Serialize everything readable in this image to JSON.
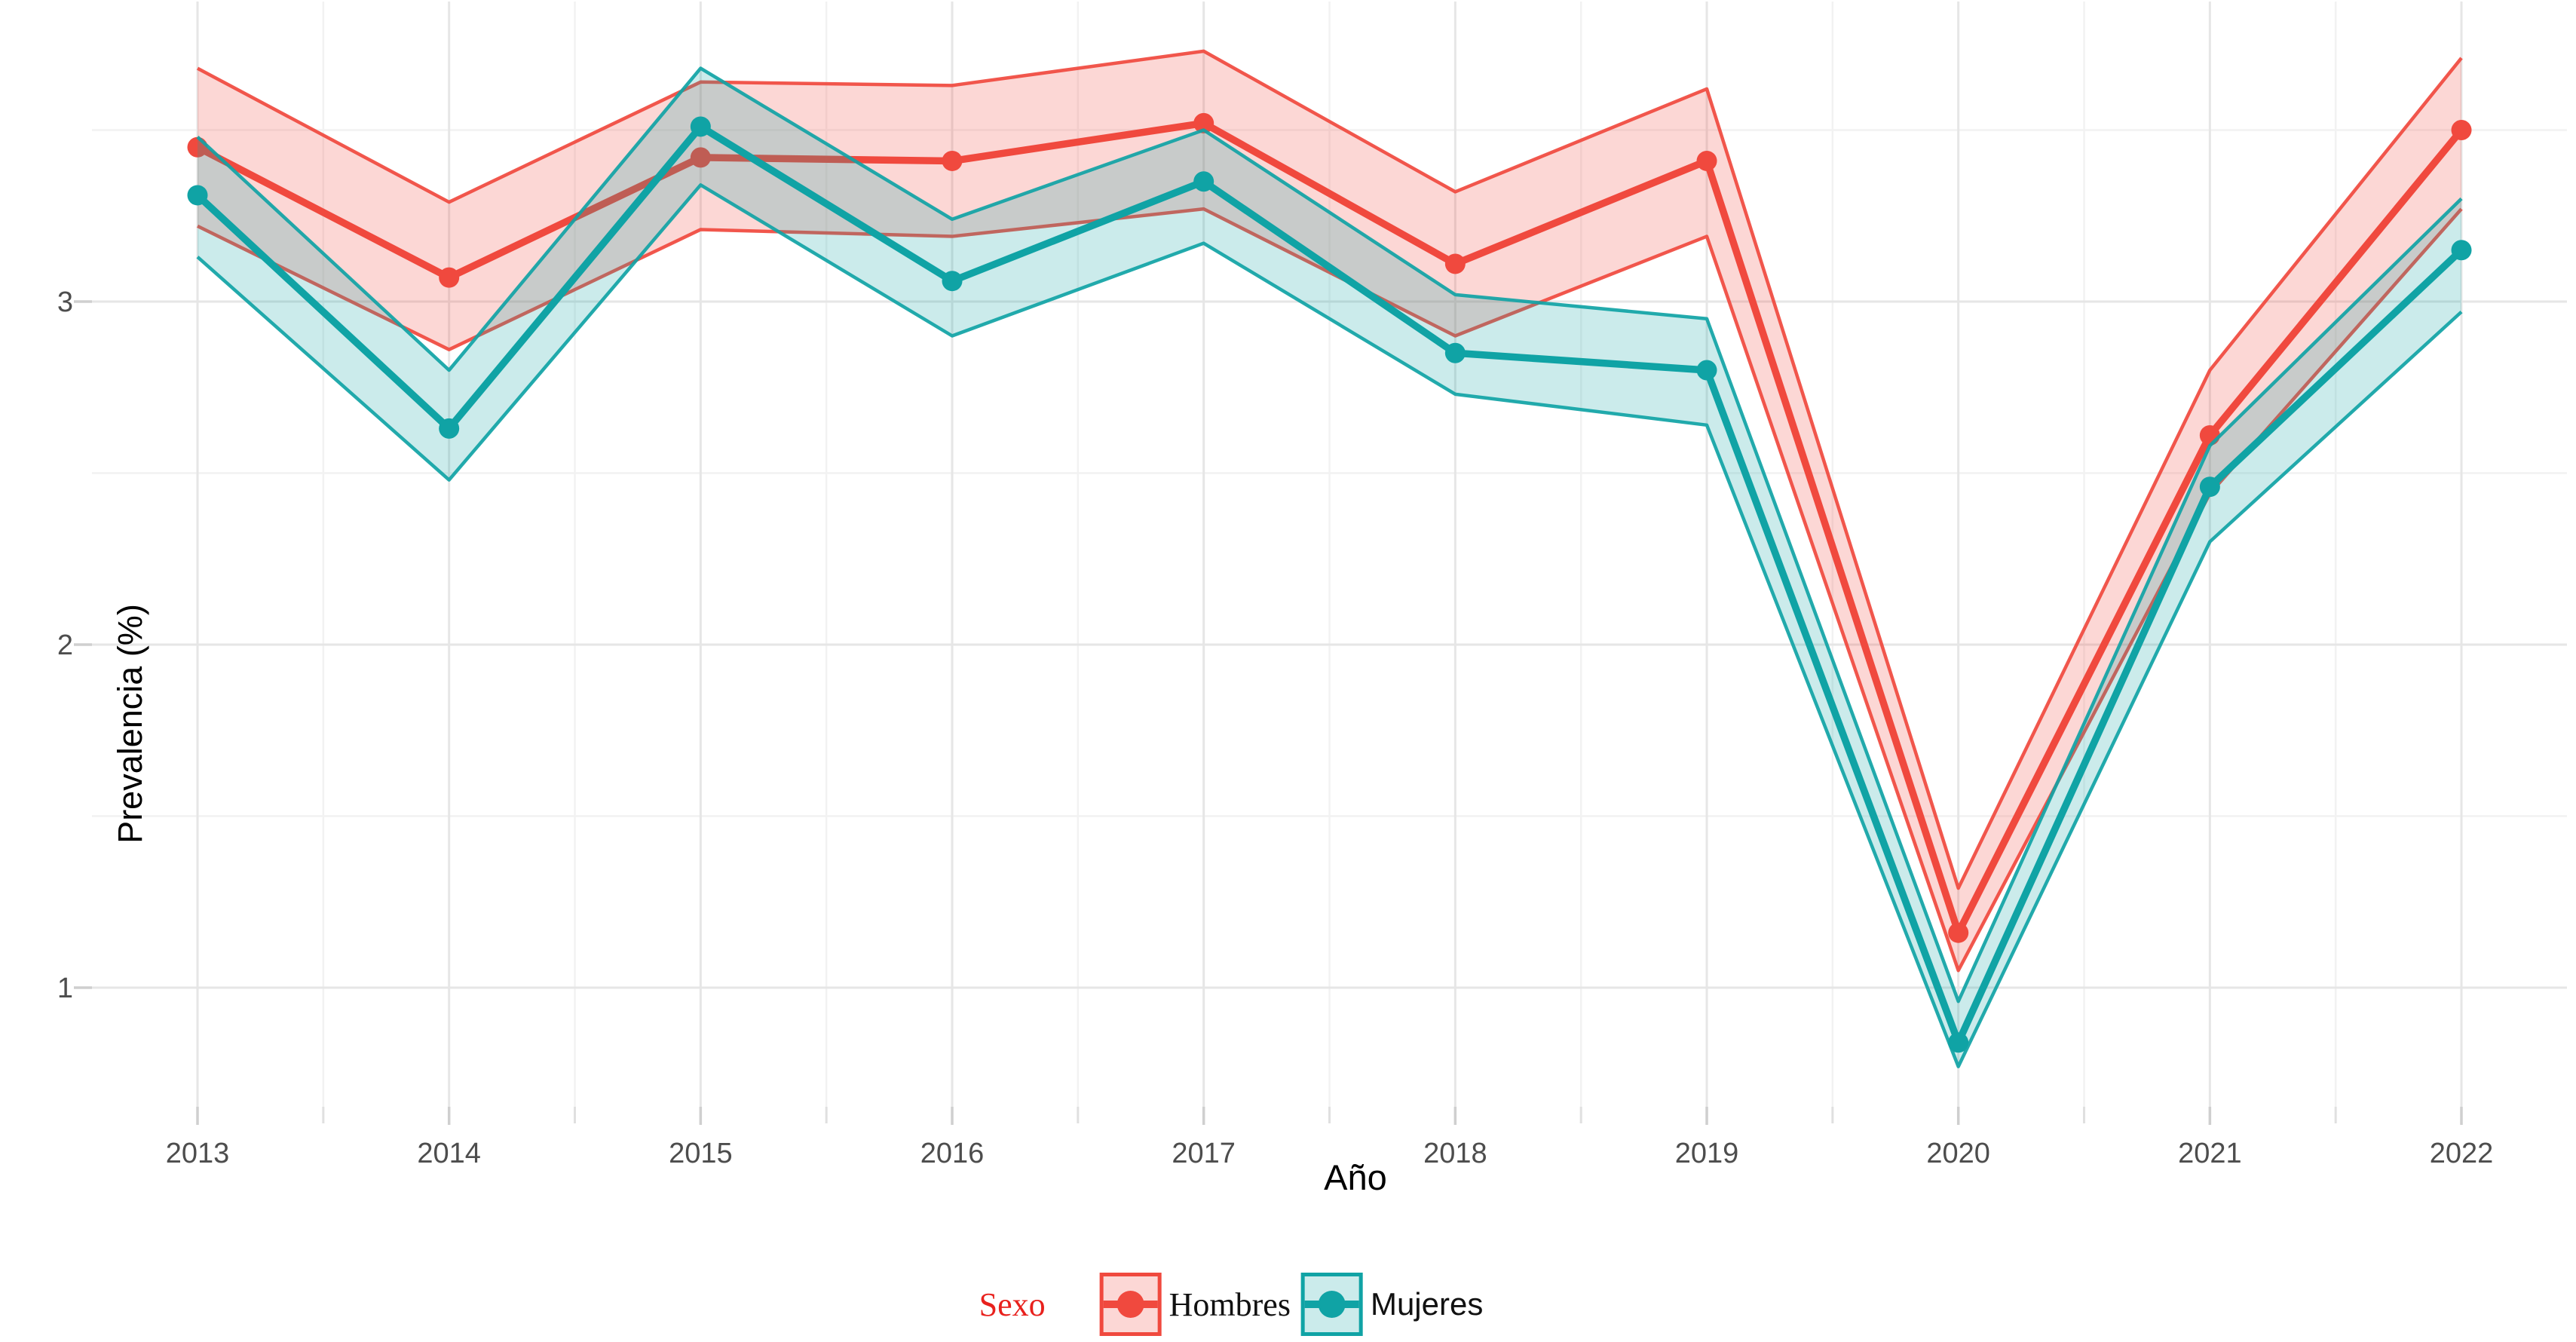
{
  "chart_data": {
    "type": "line",
    "title": "",
    "xlabel": "Año",
    "ylabel": "Prevalencia (%)",
    "x": [
      2013,
      2014,
      2015,
      2016,
      2017,
      2018,
      2019,
      2020,
      2021,
      2022
    ],
    "x_tick_labels": [
      "2013",
      "2014",
      "2015",
      "2016",
      "2017",
      "2018",
      "2019",
      "2020",
      "2021",
      "2022"
    ],
    "y_ticks": [
      1,
      2,
      3
    ],
    "y_tick_labels": [
      "1",
      "2",
      "3"
    ],
    "y_minor_ticks": [
      1.5,
      2.5,
      3.5
    ],
    "ylim": [
      0.65,
      3.88
    ],
    "grid": true,
    "legend_position": "bottom",
    "legend": {
      "title": "Sexo",
      "title_color": "#e8211d",
      "entries": [
        "Hombres",
        "Mujeres"
      ]
    },
    "series": [
      {
        "name": "Hombres",
        "color": "#f0493e",
        "fill_opacity": 0.22,
        "values": [
          3.45,
          3.07,
          3.42,
          3.41,
          3.52,
          3.11,
          3.41,
          1.16,
          2.61,
          3.5
        ],
        "lower": [
          3.22,
          2.86,
          3.21,
          3.19,
          3.27,
          2.9,
          3.19,
          1.05,
          2.44,
          3.27
        ],
        "upper": [
          3.68,
          3.29,
          3.64,
          3.63,
          3.73,
          3.32,
          3.62,
          1.29,
          2.8,
          3.71
        ]
      },
      {
        "name": "Mujeres",
        "color": "#10a3a5",
        "fill_opacity": 0.22,
        "values": [
          3.31,
          2.63,
          3.51,
          3.06,
          3.35,
          2.85,
          2.8,
          0.84,
          2.46,
          3.15
        ],
        "lower": [
          3.13,
          2.48,
          3.34,
          2.9,
          3.17,
          2.73,
          2.64,
          0.77,
          2.3,
          2.97
        ],
        "upper": [
          3.48,
          2.8,
          3.68,
          3.24,
          3.5,
          3.02,
          2.95,
          0.96,
          2.58,
          3.3
        ]
      }
    ],
    "colors": {
      "major_grid": "#e6e6e6",
      "minor_grid": "#f2f2f2",
      "tick": "#cfcfcf",
      "tick_label": "#4d4d4d"
    }
  }
}
